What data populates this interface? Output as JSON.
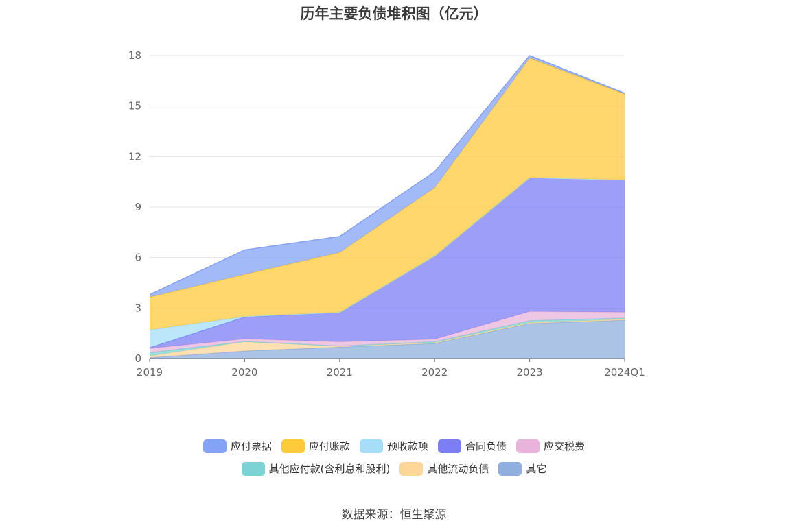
{
  "chart_data": {
    "type": "area",
    "title": "历年主要负债堆积图（亿元）",
    "categories": [
      "2019",
      "2020",
      "2021",
      "2022",
      "2023",
      "2024Q1"
    ],
    "ylim": [
      0,
      18
    ],
    "yticks": [
      0,
      3,
      6,
      9,
      12,
      15,
      18
    ],
    "stacked": true,
    "grid": true,
    "legend_position": "bottom",
    "series": [
      {
        "name": "其它",
        "color": "#8fb0de",
        "values": [
          0.05,
          0.45,
          0.68,
          0.9,
          2.08,
          2.28
        ]
      },
      {
        "name": "其他流动负债",
        "color": "#ffd699",
        "values": [
          0.1,
          0.55,
          0.05,
          0.05,
          0.05,
          0.05
        ]
      },
      {
        "name": "其他应付款(含利息和股利)",
        "color": "#7dd3d3",
        "values": [
          0.2,
          0.02,
          0.02,
          0.05,
          0.12,
          0.08
        ]
      },
      {
        "name": "应交税费",
        "color": "#e8b4dc",
        "values": [
          0.25,
          0.15,
          0.25,
          0.15,
          0.55,
          0.35
        ]
      },
      {
        "name": "合同负债",
        "color": "#7b7ef5",
        "values": [
          0.05,
          1.3,
          1.75,
          4.95,
          7.95,
          7.85
        ]
      },
      {
        "name": "预收款项",
        "color": "#a6def7",
        "values": [
          1.05,
          0.03,
          0.0,
          0.0,
          0.0,
          0.0
        ]
      },
      {
        "name": "应付账款",
        "color": "#ffc93c",
        "values": [
          1.95,
          2.5,
          3.55,
          4.05,
          7.1,
          5.1
        ]
      },
      {
        "name": "应付票据",
        "color": "#84a3f7",
        "values": [
          0.15,
          1.45,
          0.95,
          0.95,
          0.15,
          0.05
        ]
      }
    ]
  },
  "legend": {
    "row1": [
      {
        "label": "应付票据",
        "color": "#84a3f7"
      },
      {
        "label": "应付账款",
        "color": "#ffc93c"
      },
      {
        "label": "预收款项",
        "color": "#a6def7"
      },
      {
        "label": "合同负债",
        "color": "#7b7ef5"
      },
      {
        "label": "应交税费",
        "color": "#e8b4dc"
      }
    ],
    "row2": [
      {
        "label": "其他应付款(含利息和股利)",
        "color": "#7dd3d3"
      },
      {
        "label": "其他流动负债",
        "color": "#ffd699"
      },
      {
        "label": "其它",
        "color": "#8fb0de"
      }
    ]
  },
  "source": "数据来源：恒生聚源"
}
